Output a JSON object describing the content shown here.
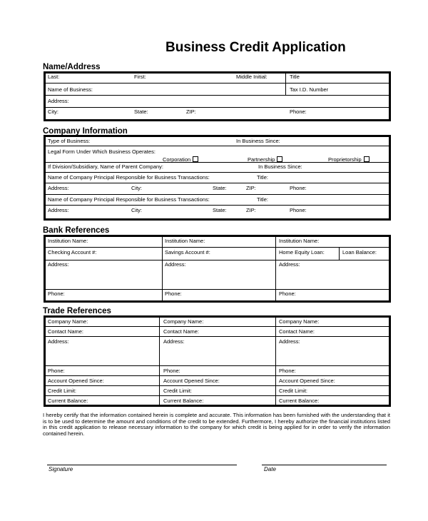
{
  "title": "Business Credit Application",
  "name_address": {
    "heading": "Name/Address",
    "last": "Last:",
    "first": "First:",
    "middle": "Middle Initial:",
    "title": "Title",
    "business": "Name of Business:",
    "tax": "Tax I.D. Number",
    "address": "Address:",
    "city": "City:",
    "state": "State:",
    "zip": "ZIP:",
    "phone": "Phone:"
  },
  "company": {
    "heading": "Company Information",
    "type": "Type of Business:",
    "since": "In Business Since:",
    "legal": "Legal Form Under Which Business Operates:",
    "corporation": "Corporation",
    "partnership": "Partnership",
    "proprietorship": "Proprietorship",
    "division": "If Division/Subsidiary, Name of Parent Company:",
    "since2": "In Business Since:",
    "principal": "Name of Company Principal Responsible for Business Transactions:",
    "ptitle": "Title:",
    "address": "Address:",
    "city": "City:",
    "state": "State:",
    "zip": "ZIP:",
    "phone": "Phone:"
  },
  "bank": {
    "heading": "Bank References",
    "institution": "Institution Name:",
    "checking": "Checking Account #:",
    "savings": "Savings Account #:",
    "equity": "Home Equity Loan:",
    "loan": "Loan Balance:",
    "address": "Address:",
    "phone": "Phone:"
  },
  "trade": {
    "heading": "Trade References",
    "company": "Company Name:",
    "contact": "Contact Name:",
    "address": "Address:",
    "phone": "Phone:",
    "opened": "Account Opened Since:",
    "limit": "Credit Limit:",
    "balance": "Current Balance:"
  },
  "certification": "I hereby certify that the information contained herein is complete and accurate. This information has been furnished with the understanding that it is to be used to determine the amount and conditions of the credit to be extended. Furthermore, I hereby authorize the financial institutions listed in this credit application to release necessary information to the company for which credit is being applied for in order to verify the information contained herein.",
  "signature": "Signature",
  "date": "Date"
}
